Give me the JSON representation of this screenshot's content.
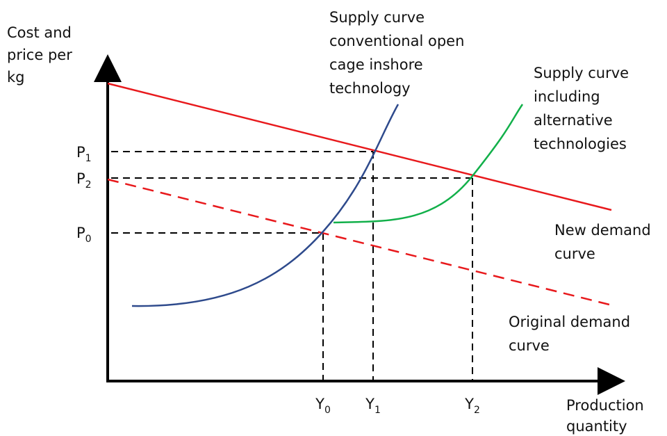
{
  "axes": {
    "y_label": [
      "Cost and",
      "price per",
      "kg"
    ],
    "x_label": [
      "Production",
      "quantity"
    ]
  },
  "price_labels": [
    {
      "letter": "P",
      "sub": "1"
    },
    {
      "letter": "P",
      "sub": "2"
    },
    {
      "letter": "P",
      "sub": "0"
    }
  ],
  "quantity_labels": [
    {
      "letter": "Y",
      "sub": "0"
    },
    {
      "letter": "Y",
      "sub": "1"
    },
    {
      "letter": "Y",
      "sub": "2"
    }
  ],
  "curves": {
    "supply_conventional": [
      "Supply curve",
      "conventional open",
      "cage inshore",
      "technology"
    ],
    "supply_alternative": [
      "Supply curve",
      "including",
      "alternative",
      "technologies"
    ],
    "new_demand": [
      "New demand",
      "curve"
    ],
    "original_demand": [
      "Original demand",
      "curve"
    ]
  }
}
